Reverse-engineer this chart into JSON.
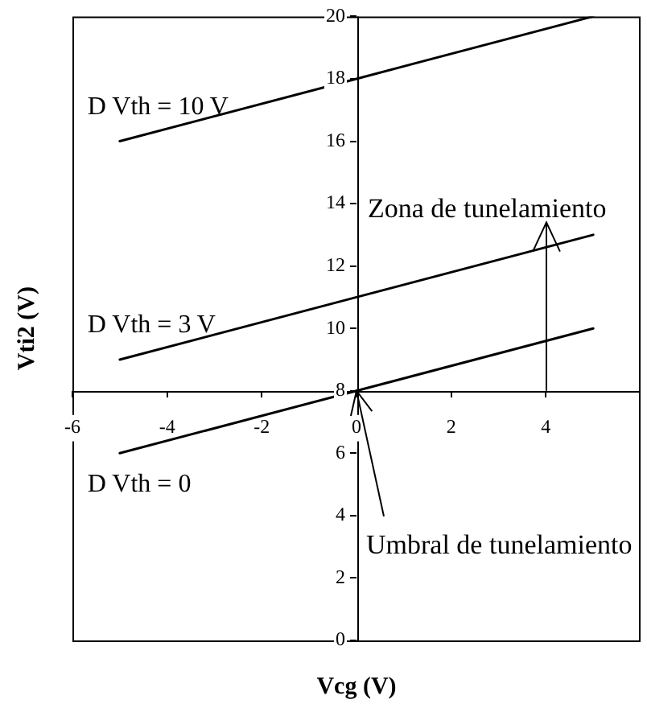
{
  "chart_data": {
    "type": "line",
    "xlabel": "Vcg (V)",
    "ylabel": "Vti2 (V)",
    "x": [
      -5,
      0,
      5
    ],
    "series": [
      {
        "name": "D Vth = 10 V",
        "color": "#000000",
        "values": [
          16,
          18,
          20
        ]
      },
      {
        "name": "D Vth = 3 V",
        "color": "#000000",
        "values": [
          9,
          11,
          13
        ]
      },
      {
        "name": "D Vth = 0",
        "color": "#000000",
        "values": [
          6,
          8,
          10
        ]
      }
    ],
    "xlim": [
      -6,
      6
    ],
    "xticks": [
      -6,
      -4,
      -2,
      0,
      2,
      4
    ],
    "ylim": [
      0,
      20
    ],
    "yticks": [
      0,
      2,
      4,
      6,
      8,
      10,
      12,
      14,
      16,
      18,
      20
    ],
    "annotations": [
      "Zona de tunelamiento",
      {
        "text": "Umbral de tunelamiento",
        "x": 0,
        "y": 8
      }
    ]
  }
}
